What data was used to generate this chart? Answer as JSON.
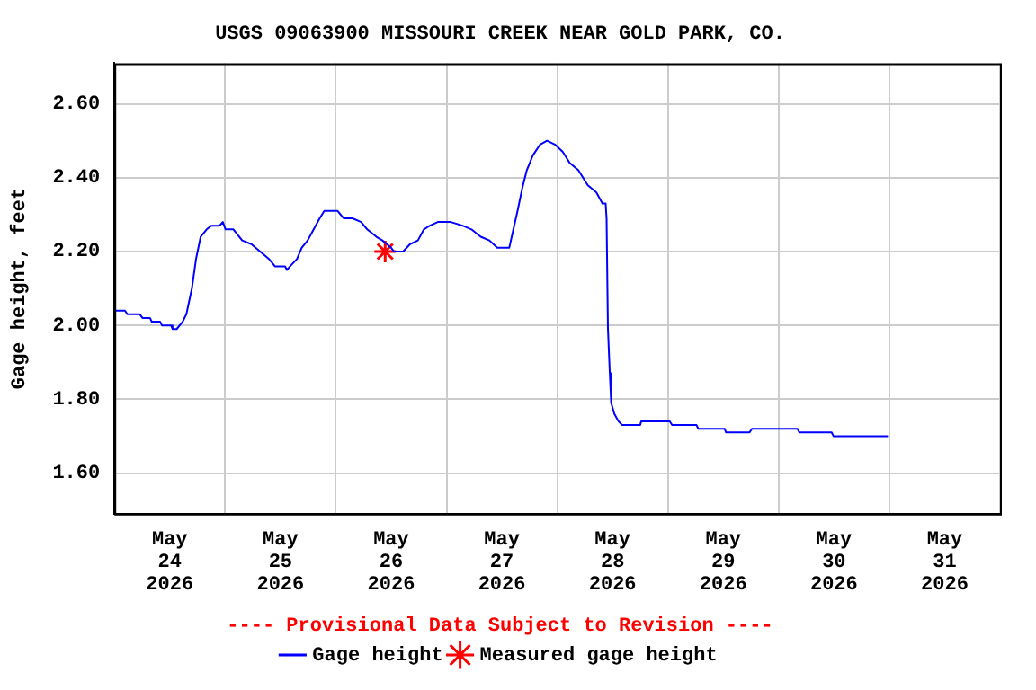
{
  "chart_data": {
    "type": "line",
    "title": "USGS 09063900 MISSOURI CREEK NEAR GOLD PARK, CO.",
    "ylabel": "Gage height, feet",
    "annotations": [
      "---- Provisional Data Subject to Revision ----"
    ],
    "xlim": [
      "2026-05-24T00:00",
      "2026-06-01T00:00"
    ],
    "xticks": [
      {
        "value": "2026-05-24T00:00",
        "label": null
      },
      {
        "value": "2026-05-24T12:00",
        "label": "May\n24\n2026"
      },
      {
        "value": "2026-05-25T00:00",
        "label": null
      },
      {
        "value": "2026-05-25T12:00",
        "label": "May\n25\n2026"
      },
      {
        "value": "2026-05-26T00:00",
        "label": null
      },
      {
        "value": "2026-05-26T12:00",
        "label": "May\n26\n2026"
      },
      {
        "value": "2026-05-27T00:00",
        "label": null
      },
      {
        "value": "2026-05-27T12:00",
        "label": "May\n27\n2026"
      },
      {
        "value": "2026-05-28T00:00",
        "label": null
      },
      {
        "value": "2026-05-28T12:00",
        "label": "May\n28\n2026"
      },
      {
        "value": "2026-05-29T00:00",
        "label": null
      },
      {
        "value": "2026-05-29T12:00",
        "label": "May\n29\n2026"
      },
      {
        "value": "2026-05-30T00:00",
        "label": null
      },
      {
        "value": "2026-05-30T12:00",
        "label": "May\n30\n2026"
      },
      {
        "value": "2026-05-31T00:00",
        "label": null
      },
      {
        "value": "2026-05-31T12:00",
        "label": "May\n31\n2026"
      },
      {
        "value": "2026-06-01T00:00",
        "label": null
      }
    ],
    "ylim": [
      1.49,
      2.71
    ],
    "yticks": [
      {
        "value": 1.6,
        "label": "1.60"
      },
      {
        "value": 1.8,
        "label": "1.80"
      },
      {
        "value": 2.0,
        "label": "2.00"
      },
      {
        "value": 2.2,
        "label": "2.20"
      },
      {
        "value": 2.4,
        "label": "2.40"
      },
      {
        "value": 2.6,
        "label": "2.60"
      }
    ],
    "grid": true,
    "legend": "bottom",
    "series": [
      {
        "name": "Gage height",
        "marker": "none",
        "color": "#0000ff",
        "x": [
          "2026-05-24T00:00",
          "2026-05-24T02:18",
          "2026-05-24T02:48",
          "2026-05-24T05:30",
          "2026-05-24T06:06",
          "2026-05-24T07:42",
          "2026-05-24T08:06",
          "2026-05-24T09:54",
          "2026-05-24T10:18",
          "2026-05-24T12:18",
          "2026-05-24T12:36",
          "2026-05-24T13:30",
          "2026-05-24T14:48",
          "2026-05-24T15:36",
          "2026-05-24T16:48",
          "2026-05-24T17:42",
          "2026-05-24T18:42",
          "2026-05-24T20:00",
          "2026-05-24T21:00",
          "2026-05-24T22:48",
          "2026-05-24T23:30",
          "2026-05-25T00:06",
          "2026-05-25T01:48",
          "2026-05-25T03:42",
          "2026-05-25T05:42",
          "2026-05-25T07:36",
          "2026-05-25T09:30",
          "2026-05-25T10:48",
          "2026-05-25T13:00",
          "2026-05-25T13:24",
          "2026-05-25T14:06",
          "2026-05-25T15:36",
          "2026-05-25T16:36",
          "2026-05-25T17:54",
          "2026-05-25T19:12",
          "2026-05-25T20:30",
          "2026-05-25T21:30",
          "2026-05-26T00:24",
          "2026-05-26T01:42",
          "2026-05-26T03:36",
          "2026-05-26T05:30",
          "2026-05-26T06:48",
          "2026-05-26T08:48",
          "2026-05-26T10:06",
          "2026-05-26T12:00",
          "2026-05-26T12:36",
          "2026-05-26T14:36",
          "2026-05-26T16:06",
          "2026-05-26T17:48",
          "2026-05-26T19:06",
          "2026-05-26T20:24",
          "2026-05-26T22:06",
          "2026-05-27T00:54",
          "2026-05-27T03:30",
          "2026-05-27T05:24",
          "2026-05-27T07:24",
          "2026-05-27T09:18",
          "2026-05-27T11:00",
          "2026-05-27T13:36",
          "2026-05-27T14:30",
          "2026-05-27T15:24",
          "2026-05-27T16:24",
          "2026-05-27T17:24",
          "2026-05-27T18:42",
          "2026-05-27T20:18",
          "2026-05-27T21:48",
          "2026-05-27T23:30",
          "2026-05-28T01:12",
          "2026-05-28T02:42",
          "2026-05-28T04:36",
          "2026-05-28T06:36",
          "2026-05-28T08:30",
          "2026-05-28T09:48",
          "2026-05-28T10:30",
          "2026-05-28T10:42",
          "2026-05-28T11:00",
          "2026-05-28T11:24",
          "2026-05-28T11:42",
          "2026-05-28T12:24",
          "2026-05-28T13:18",
          "2026-05-28T14:06",
          "2026-05-28T18:00",
          "2026-05-28T18:12",
          "2026-05-29T00:24",
          "2026-05-29T00:54",
          "2026-05-29T06:12",
          "2026-05-29T06:36",
          "2026-05-29T12:18",
          "2026-05-29T12:36",
          "2026-05-29T17:42",
          "2026-05-29T18:12",
          "2026-05-30T04:06",
          "2026-05-30T04:30",
          "2026-05-30T11:30",
          "2026-05-30T11:54",
          "2026-05-30T23:42"
        ],
        "values": [
          2.04,
          2.04,
          2.03,
          2.03,
          2.02,
          2.02,
          2.01,
          2.01,
          2.0,
          2.0,
          1.99,
          1.99,
          2.01,
          2.03,
          2.1,
          2.18,
          2.24,
          2.26,
          2.27,
          2.27,
          2.28,
          2.26,
          2.26,
          2.23,
          2.22,
          2.2,
          2.18,
          2.16,
          2.16,
          2.15,
          2.16,
          2.18,
          2.21,
          2.23,
          2.26,
          2.29,
          2.31,
          2.31,
          2.29,
          2.29,
          2.28,
          2.26,
          2.24,
          2.23,
          2.21,
          2.2,
          2.2,
          2.22,
          2.23,
          2.26,
          2.27,
          2.28,
          2.28,
          2.27,
          2.26,
          2.24,
          2.23,
          2.21,
          2.21,
          2.26,
          2.31,
          2.37,
          2.42,
          2.46,
          2.49,
          2.5,
          2.49,
          2.47,
          2.44,
          2.42,
          2.38,
          2.36,
          2.33,
          2.33,
          2.29,
          1.99,
          1.87,
          1.79,
          1.76,
          1.74,
          1.73,
          1.73,
          1.74,
          1.74,
          1.73,
          1.73,
          1.72,
          1.72,
          1.71,
          1.71,
          1.72,
          1.72,
          1.71,
          1.71,
          1.7,
          1.7
        ]
      },
      {
        "name": "Measured gage height",
        "type": "scatter",
        "marker": "cross",
        "color": "#ff0000",
        "x": [
          "2026-05-26T10:42"
        ],
        "values": [
          2.2
        ]
      }
    ]
  }
}
